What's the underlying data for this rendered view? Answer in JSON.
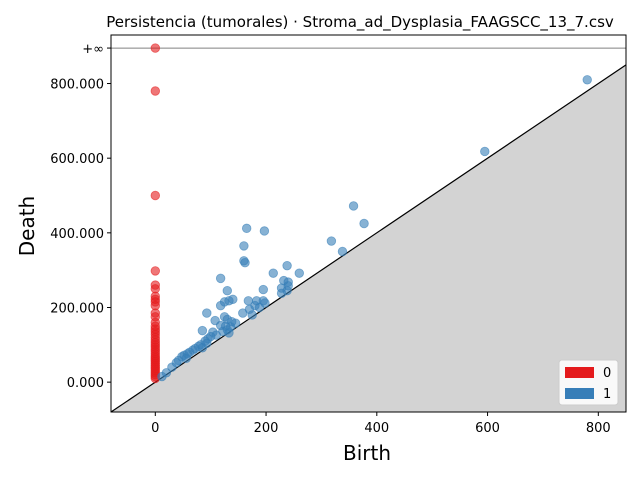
{
  "chart_data": {
    "type": "scatter",
    "title": "Persistencia (tumorales) · Stroma_ad_Dysplasia_FAAGSCC_13_7.csv",
    "xlabel": "Birth",
    "ylabel": "Death",
    "xlim": [
      -80,
      850
    ],
    "ylim": [
      -80,
      930
    ],
    "infinity_line": {
      "y": 895,
      "label": "+∞"
    },
    "diagonal": true,
    "grid": false,
    "legend_position": "bottom-right",
    "x_ticks": [
      {
        "value": 0,
        "label": "0"
      },
      {
        "value": 200,
        "label": "200"
      },
      {
        "value": 400,
        "label": "400"
      },
      {
        "value": 600,
        "label": "600"
      },
      {
        "value": 800,
        "label": "800"
      }
    ],
    "y_ticks": [
      {
        "value": 0,
        "label": "0.000"
      },
      {
        "value": 200,
        "label": "200.000"
      },
      {
        "value": 400,
        "label": "400.000"
      },
      {
        "value": 600,
        "label": "600.000"
      },
      {
        "value": 800,
        "label": "800.000"
      }
    ],
    "colors": {
      "h0": "#e41a1c",
      "h1": "#377eb8",
      "diagonal_fill": "#d3d3d3",
      "infinity_line": "#808080"
    },
    "series": [
      {
        "name": "0",
        "color": "#e41a1c",
        "points": [
          [
            0,
            895
          ],
          [
            0,
            780
          ],
          [
            0,
            500
          ],
          [
            0,
            298
          ],
          [
            0,
            260
          ],
          [
            0,
            250
          ],
          [
            0,
            230
          ],
          [
            0,
            222
          ],
          [
            0,
            215
          ],
          [
            0,
            205
          ],
          [
            0,
            185
          ],
          [
            0,
            175
          ],
          [
            0,
            160
          ],
          [
            0,
            150
          ],
          [
            0,
            142
          ],
          [
            0,
            135
          ],
          [
            0,
            128
          ],
          [
            0,
            120
          ],
          [
            0,
            113
          ],
          [
            0,
            106
          ],
          [
            0,
            100
          ],
          [
            0,
            94
          ],
          [
            0,
            88
          ],
          [
            0,
            82
          ],
          [
            0,
            76
          ],
          [
            0,
            70
          ],
          [
            0,
            65
          ],
          [
            0,
            60
          ],
          [
            0,
            55
          ],
          [
            0,
            50
          ],
          [
            0,
            45
          ],
          [
            0,
            40
          ],
          [
            0,
            35
          ],
          [
            0,
            30
          ],
          [
            0,
            25
          ],
          [
            0,
            20
          ],
          [
            0,
            15
          ],
          [
            0,
            10
          ]
        ]
      },
      {
        "name": "1",
        "color": "#377eb8",
        "points": [
          [
            780,
            810
          ],
          [
            595,
            618
          ],
          [
            358,
            472
          ],
          [
            377,
            425
          ],
          [
            318,
            378
          ],
          [
            338,
            350
          ],
          [
            165,
            412
          ],
          [
            197,
            405
          ],
          [
            160,
            365
          ],
          [
            160,
            325
          ],
          [
            162,
            320
          ],
          [
            238,
            312
          ],
          [
            213,
            292
          ],
          [
            260,
            292
          ],
          [
            232,
            272
          ],
          [
            240,
            268
          ],
          [
            240,
            258
          ],
          [
            228,
            252
          ],
          [
            195,
            248
          ],
          [
            238,
            245
          ],
          [
            228,
            238
          ],
          [
            130,
            245
          ],
          [
            118,
            278
          ],
          [
            140,
            222
          ],
          [
            133,
            218
          ],
          [
            125,
            215
          ],
          [
            118,
            205
          ],
          [
            168,
            218
          ],
          [
            183,
            218
          ],
          [
            195,
            218
          ],
          [
            198,
            212
          ],
          [
            180,
            205
          ],
          [
            188,
            200
          ],
          [
            170,
            195
          ],
          [
            158,
            185
          ],
          [
            175,
            180
          ],
          [
            93,
            185
          ],
          [
            125,
            175
          ],
          [
            130,
            168
          ],
          [
            138,
            162
          ],
          [
            108,
            165
          ],
          [
            145,
            158
          ],
          [
            118,
            152
          ],
          [
            127,
            150
          ],
          [
            136,
            148
          ],
          [
            130,
            140
          ],
          [
            122,
            136
          ],
          [
            133,
            132
          ],
          [
            85,
            138
          ],
          [
            104,
            134
          ],
          [
            110,
            126
          ],
          [
            100,
            122
          ],
          [
            95,
            116
          ],
          [
            90,
            110
          ],
          [
            93,
            104
          ],
          [
            82,
            100
          ],
          [
            78,
            96
          ],
          [
            85,
            92
          ],
          [
            72,
            90
          ],
          [
            68,
            86
          ],
          [
            62,
            80
          ],
          [
            58,
            76
          ],
          [
            52,
            72
          ],
          [
            48,
            68
          ],
          [
            56,
            64
          ],
          [
            42,
            58
          ],
          [
            38,
            52
          ],
          [
            30,
            40
          ],
          [
            20,
            25
          ],
          [
            12,
            15
          ]
        ]
      }
    ],
    "legend": [
      {
        "label": "0",
        "color": "#e41a1c"
      },
      {
        "label": "1",
        "color": "#377eb8"
      }
    ]
  }
}
